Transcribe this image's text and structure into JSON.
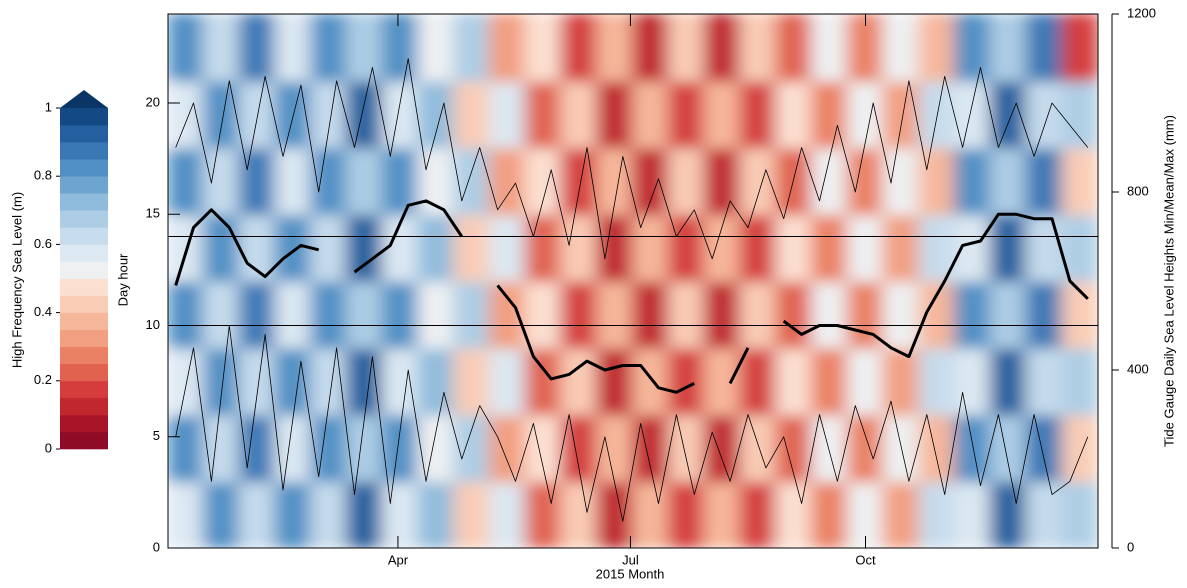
{
  "chart_data": {
    "type": "heatmap",
    "xlabel": "2015 Month",
    "ylabel": "Day hour",
    "y2label": "Tide Gauge Daily Sea Level Heights Min/Mean/Max (mm)",
    "colorbar_label": "High Frequency Sea Level (m)",
    "xlim": [
      1,
      365
    ],
    "xticks": [
      {
        "value": 91,
        "label": "Apr"
      },
      {
        "value": 182,
        "label": "Jul"
      },
      {
        "value": 274,
        "label": "Oct"
      }
    ],
    "ylim": [
      0,
      24
    ],
    "yticks": [
      0,
      5,
      10,
      15,
      20
    ],
    "y2lim": [
      0,
      1200
    ],
    "y2ticks": [
      0,
      400,
      800,
      1200
    ],
    "hlines": [
      10,
      14
    ],
    "clim": [
      0,
      1
    ],
    "colorbar_ticks": [
      0,
      0.2,
      0.4,
      0.6,
      0.8,
      1
    ],
    "colorbar_colors": [
      "#8e0c25",
      "#a81529",
      "#c0282e",
      "#d43d3c",
      "#e0624f",
      "#ea8064",
      "#f29e80",
      "#f6b79b",
      "#f9ccb6",
      "#fbe0d2",
      "#eef0f2",
      "#dce8f2",
      "#c6dbec",
      "#adcde5",
      "#8fbbdc",
      "#6ea5d0",
      "#4f8fc4",
      "#3a78b5",
      "#24609f",
      "#134a85"
    ],
    "extend_color": "#0a3566",
    "x_bins": [
      1,
      15,
      29,
      43,
      57,
      71,
      85,
      99,
      113,
      127,
      141,
      155,
      169,
      183,
      197,
      211,
      225,
      239,
      253,
      267,
      281,
      295,
      309,
      323,
      337,
      351,
      365
    ],
    "y_bins": [
      0,
      3,
      6,
      9,
      12,
      15,
      18,
      21,
      24
    ],
    "z": [
      [
        0.58,
        0.84,
        0.63,
        0.82,
        0.6,
        0.9,
        0.58,
        0.74,
        0.43,
        0.57,
        0.23,
        0.42,
        0.13,
        0.37,
        0.16,
        0.37,
        0.18,
        0.47,
        0.28,
        0.5,
        0.3,
        0.62,
        0.58,
        0.9,
        0.63,
        0.67
      ],
      [
        0.82,
        0.6,
        0.87,
        0.58,
        0.84,
        0.66,
        0.82,
        0.5,
        0.67,
        0.33,
        0.47,
        0.18,
        0.37,
        0.13,
        0.4,
        0.13,
        0.42,
        0.23,
        0.52,
        0.26,
        0.54,
        0.38,
        0.82,
        0.66,
        0.87,
        0.43
      ],
      [
        0.58,
        0.84,
        0.63,
        0.82,
        0.6,
        0.9,
        0.58,
        0.74,
        0.43,
        0.57,
        0.23,
        0.42,
        0.13,
        0.37,
        0.16,
        0.37,
        0.18,
        0.47,
        0.28,
        0.5,
        0.3,
        0.62,
        0.58,
        0.9,
        0.63,
        0.67
      ],
      [
        0.82,
        0.6,
        0.87,
        0.58,
        0.84,
        0.66,
        0.82,
        0.5,
        0.67,
        0.33,
        0.47,
        0.18,
        0.37,
        0.13,
        0.4,
        0.13,
        0.42,
        0.23,
        0.52,
        0.26,
        0.54,
        0.38,
        0.82,
        0.66,
        0.87,
        0.43
      ],
      [
        0.58,
        0.84,
        0.63,
        0.82,
        0.6,
        0.9,
        0.58,
        0.74,
        0.43,
        0.57,
        0.23,
        0.42,
        0.13,
        0.37,
        0.16,
        0.37,
        0.18,
        0.47,
        0.28,
        0.5,
        0.3,
        0.62,
        0.58,
        0.9,
        0.63,
        0.67
      ],
      [
        0.82,
        0.6,
        0.87,
        0.58,
        0.84,
        0.66,
        0.82,
        0.5,
        0.67,
        0.33,
        0.47,
        0.18,
        0.37,
        0.13,
        0.4,
        0.13,
        0.42,
        0.23,
        0.52,
        0.26,
        0.54,
        0.38,
        0.82,
        0.66,
        0.87,
        0.43
      ],
      [
        0.58,
        0.84,
        0.63,
        0.82,
        0.6,
        0.9,
        0.58,
        0.74,
        0.43,
        0.57,
        0.23,
        0.42,
        0.13,
        0.37,
        0.16,
        0.37,
        0.18,
        0.47,
        0.28,
        0.5,
        0.3,
        0.62,
        0.58,
        0.9,
        0.63,
        0.67
      ],
      [
        0.82,
        0.6,
        0.87,
        0.58,
        0.84,
        0.66,
        0.82,
        0.5,
        0.67,
        0.33,
        0.47,
        0.18,
        0.37,
        0.13,
        0.4,
        0.13,
        0.42,
        0.23,
        0.52,
        0.26,
        0.54,
        0.38,
        0.82,
        0.66,
        0.87,
        0.15
      ]
    ],
    "x": [
      4,
      11,
      18,
      25,
      32,
      39,
      46,
      53,
      60,
      67,
      74,
      81,
      88,
      95,
      102,
      109,
      116,
      123,
      130,
      137,
      144,
      151,
      158,
      165,
      172,
      179,
      186,
      193,
      200,
      207,
      214,
      221,
      228,
      235,
      242,
      249,
      256,
      263,
      270,
      277,
      284,
      291,
      298,
      305,
      312,
      319,
      326,
      333,
      340,
      347,
      354,
      361
    ],
    "series": [
      {
        "axis": "y2",
        "color": "#000000",
        "width": 0.8,
        "values": [
          900,
          1000,
          820,
          1050,
          850,
          1060,
          880,
          1040,
          800,
          1050,
          900,
          1080,
          880,
          1100,
          850,
          1000,
          780,
          900,
          760,
          820,
          700,
          850,
          680,
          900,
          650,
          880,
          720,
          830,
          700,
          760,
          650,
          780,
          720,
          850,
          740,
          900,
          780,
          950,
          800,
          1000,
          820,
          1050,
          850,
          1060,
          900,
          1080,
          900,
          1000,
          880,
          1000,
          950,
          900
        ]
      },
      {
        "axis": "y2",
        "color": "#000000",
        "width": 3,
        "values": [
          590,
          720,
          760,
          720,
          640,
          610,
          650,
          680,
          670,
          null,
          620,
          650,
          680,
          770,
          780,
          760,
          700,
          null,
          590,
          540,
          430,
          380,
          390,
          420,
          400,
          410,
          410,
          360,
          350,
          370,
          null,
          370,
          450,
          null,
          510,
          480,
          500,
          500,
          490,
          480,
          450,
          430,
          530,
          600,
          680,
          690,
          750,
          750,
          740,
          740,
          600,
          560
        ]
      },
      {
        "axis": "y2",
        "color": "#000000",
        "width": 0.8,
        "values": [
          250,
          450,
          150,
          500,
          180,
          480,
          130,
          420,
          160,
          450,
          120,
          430,
          100,
          400,
          150,
          350,
          200,
          320,
          250,
          150,
          280,
          100,
          300,
          80,
          250,
          60,
          280,
          100,
          300,
          120,
          260,
          150,
          300,
          180,
          250,
          100,
          300,
          150,
          320,
          200,
          330,
          150,
          300,
          120,
          350,
          140,
          300,
          100,
          300,
          120,
          150,
          250
        ]
      }
    ]
  }
}
